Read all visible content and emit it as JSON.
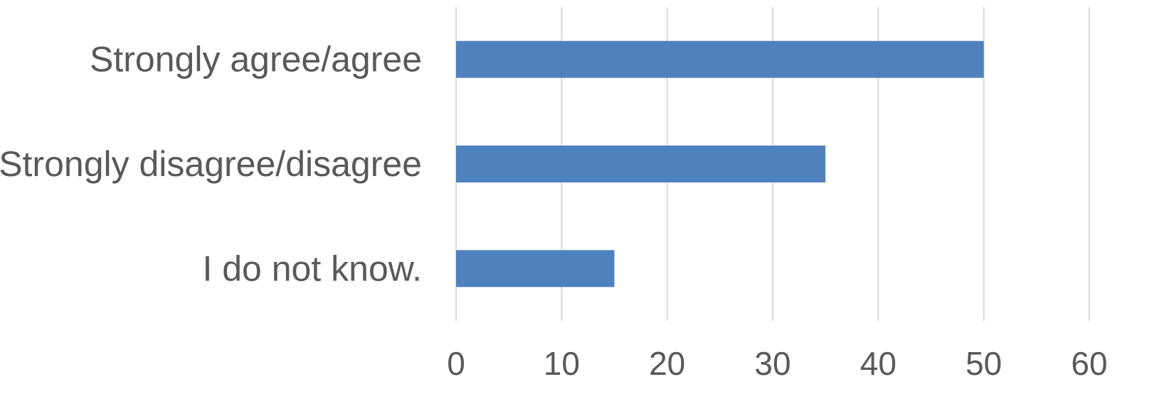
{
  "chart_data": {
    "type": "bar",
    "orientation": "horizontal",
    "title": "",
    "xlabel": "",
    "ylabel": "",
    "categories": [
      "Strongly agree/agree",
      "Strongly disagree/disagree",
      "I do not know."
    ],
    "values": [
      50,
      35,
      15
    ],
    "xlim": [
      0,
      60
    ],
    "xticks": [
      0,
      10,
      20,
      30,
      40,
      50,
      60
    ],
    "grid": "vertical",
    "legend": "none",
    "bar_color": "#4f81bd"
  }
}
